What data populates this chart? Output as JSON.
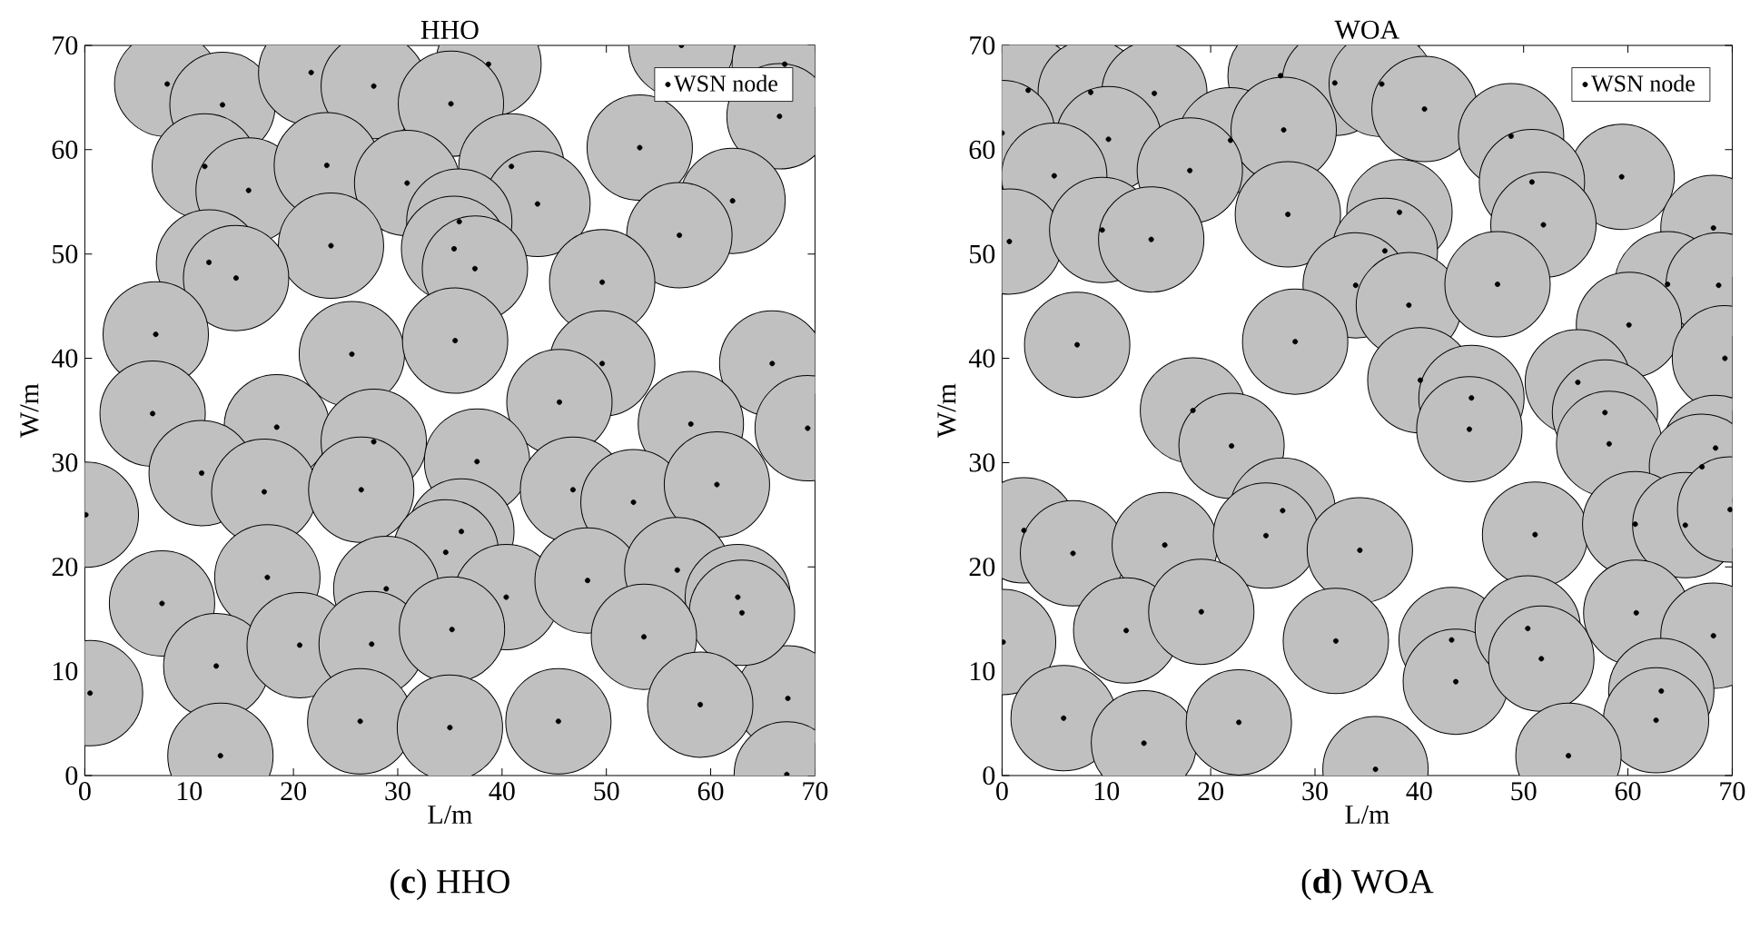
{
  "chart_data": [
    {
      "type": "bubble",
      "title": "HHO",
      "xlabel": "L/m",
      "ylabel": "W/m",
      "xlim": [
        0,
        70
      ],
      "ylim": [
        0,
        70
      ],
      "xticks": [
        0,
        10,
        20,
        30,
        40,
        50,
        60,
        70
      ],
      "yticks": [
        0,
        10,
        20,
        30,
        40,
        50,
        60,
        70
      ],
      "legend": "top right",
      "marker": "circle",
      "annotations": [
        "(**c**) HHO"
      ],
      "series": [
        {
          "name": "WSN node",
          "color": "#c0c0c0",
          "x": [
            7.9,
            13.2,
            21.7,
            27.7,
            38.7,
            35.1,
            57.2,
            67.1,
            66.6,
            53.2,
            11.5,
            15.7,
            23.2,
            30.9,
            40.9,
            43.4,
            62.1,
            57.0,
            35.9,
            35.4,
            37.4,
            23.6,
            11.9,
            14.5,
            49.6,
            6.8,
            25.6,
            35.5,
            49.6,
            65.9,
            6.5,
            18.4,
            27.7,
            45.5,
            58.1,
            69.3,
            11.2,
            17.2,
            26.5,
            37.6,
            46.8,
            52.6,
            60.6,
            0.1,
            67.4,
            36.1,
            34.6,
            28.9,
            40.4,
            48.2,
            56.8,
            62.6,
            63.0,
            7.4,
            17.5,
            12.6,
            20.6,
            27.5,
            35.2,
            53.6,
            0.5,
            26.4,
            35.0,
            45.4,
            59.0,
            13.0,
            67.3
          ],
          "values": [
            66.3,
            64.3,
            67.4,
            66.1,
            68.2,
            64.4,
            70.0,
            68.2,
            63.2,
            60.2,
            58.4,
            56.1,
            58.5,
            56.8,
            58.4,
            54.8,
            55.1,
            51.8,
            53.1,
            50.5,
            48.6,
            50.8,
            49.2,
            47.7,
            47.3,
            42.3,
            40.4,
            41.7,
            39.5,
            39.5,
            34.7,
            33.4,
            32.0,
            35.8,
            33.7,
            33.3,
            29.0,
            27.2,
            27.4,
            30.1,
            27.4,
            26.2,
            27.9,
            25.0,
            7.4,
            23.4,
            21.4,
            17.9,
            17.1,
            18.7,
            19.7,
            17.1,
            15.6,
            16.5,
            19.0,
            10.5,
            12.5,
            12.6,
            14.0,
            13.3,
            7.9,
            5.2,
            4.6,
            5.2,
            6.8,
            1.9,
            0.1
          ],
          "sizes": [
            1,
            1,
            1,
            1,
            1,
            1,
            1,
            1,
            1,
            1,
            1,
            1,
            1,
            1,
            1,
            1,
            1,
            1,
            1,
            1,
            1,
            1,
            1,
            1,
            1,
            1,
            1,
            1,
            1,
            1,
            1,
            1,
            1,
            1,
            1,
            1,
            1,
            1,
            1,
            1,
            1,
            1,
            1,
            1,
            1,
            1,
            1,
            1,
            1,
            1,
            1,
            1,
            1,
            1,
            1,
            1,
            1,
            1,
            1,
            1,
            1,
            1,
            1,
            1,
            1,
            1,
            1
          ]
        }
      ]
    },
    {
      "type": "bubble",
      "title": "WOA",
      "xlabel": "L/m",
      "ylabel": "W/m",
      "xlim": [
        0,
        70
      ],
      "ylim": [
        0,
        70
      ],
      "xticks": [
        0,
        10,
        20,
        30,
        40,
        50,
        60,
        70
      ],
      "yticks": [
        0,
        10,
        20,
        30,
        40,
        50,
        60,
        70
      ],
      "legend": "top right",
      "marker": "circle",
      "annotations": [
        "(**d**) WOA"
      ],
      "series": [
        {
          "name": "WSN node",
          "color": "#c0c0c0",
          "x": [
            2.5,
            8.5,
            14.6,
            26.7,
            31.9,
            36.4,
            40.5,
            0.0,
            10.2,
            21.9,
            27.0,
            48.8,
            5.0,
            18.0,
            59.4,
            50.8,
            0.7,
            9.6,
            14.3,
            27.4,
            38.1,
            51.9,
            68.2,
            36.7,
            33.9,
            39.0,
            47.5,
            63.8,
            68.7,
            60.1,
            7.2,
            28.1,
            69.3,
            40.1,
            45.0,
            44.8,
            55.2,
            57.8,
            58.2,
            18.3,
            22.0,
            68.4,
            67.1,
            26.9,
            2.1,
            6.8,
            15.6,
            25.3,
            34.3,
            51.1,
            60.7,
            65.5,
            69.8,
            0.1,
            11.9,
            19.1,
            32.0,
            43.1,
            43.5,
            50.4,
            51.7,
            60.8,
            68.2,
            63.2,
            62.7,
            5.9,
            13.6,
            22.7,
            35.8,
            54.3
          ],
          "values": [
            65.7,
            65.5,
            65.4,
            67.1,
            66.4,
            66.3,
            63.9,
            61.6,
            61.0,
            60.9,
            61.9,
            61.3,
            57.5,
            58.0,
            57.4,
            56.9,
            51.2,
            52.3,
            51.4,
            53.8,
            54.0,
            52.8,
            52.5,
            50.3,
            47.0,
            45.1,
            47.1,
            47.1,
            47.0,
            43.2,
            41.3,
            41.6,
            40.0,
            37.9,
            36.2,
            33.2,
            37.7,
            34.8,
            31.8,
            35.0,
            31.6,
            31.4,
            29.6,
            25.4,
            23.5,
            21.3,
            22.1,
            23.0,
            21.6,
            23.1,
            24.1,
            24.0,
            25.5,
            12.8,
            13.9,
            15.7,
            12.9,
            13.0,
            9.0,
            14.1,
            11.2,
            15.6,
            13.4,
            8.1,
            5.3,
            5.5,
            3.1,
            5.1,
            0.6,
            1.9
          ],
          "sizes": [
            1,
            1,
            1,
            1,
            1,
            1,
            1,
            1,
            1,
            1,
            1,
            1,
            1,
            1,
            1,
            1,
            1,
            1,
            1,
            1,
            1,
            1,
            1,
            1,
            1,
            1,
            1,
            1,
            1,
            1,
            1,
            1,
            1,
            1,
            1,
            1,
            1,
            1,
            1,
            1,
            1,
            1,
            1,
            1,
            1,
            1,
            1,
            1,
            1,
            1,
            1,
            1,
            1,
            1,
            1,
            1,
            1,
            1,
            1,
            1,
            1,
            1,
            1,
            1,
            1,
            1,
            1,
            1,
            1,
            1
          ]
        }
      ]
    }
  ]
}
